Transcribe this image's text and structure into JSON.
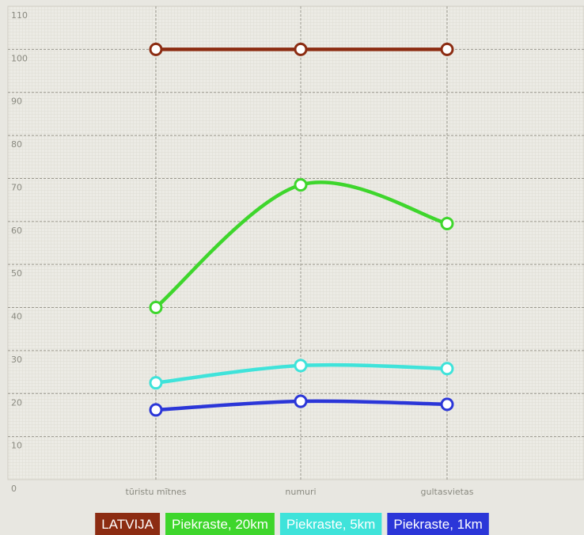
{
  "chart_data": {
    "type": "line",
    "categories": [
      "tūristu mītnes",
      "numuri",
      "gultasvietas"
    ],
    "series": [
      {
        "name": "LATVIJA",
        "color": "#8c2c12",
        "values": [
          100,
          100,
          100
        ]
      },
      {
        "name": "Piekraste, 20km",
        "color": "#3ed62c",
        "values": [
          40,
          68.5,
          59.5
        ]
      },
      {
        "name": "Piekraste, 5km",
        "color": "#3fe3da",
        "values": [
          22.5,
          26.5,
          25.8
        ]
      },
      {
        "name": "Piekraste, 1km",
        "color": "#2b36d8",
        "values": [
          16.2,
          18.2,
          17.5
        ]
      }
    ],
    "ylim": [
      0,
      110
    ],
    "yticks": [
      0,
      10,
      20,
      30,
      40,
      50,
      60,
      70,
      80,
      90,
      100,
      110
    ],
    "grid": true,
    "smooth": true,
    "legend": "bottom"
  }
}
